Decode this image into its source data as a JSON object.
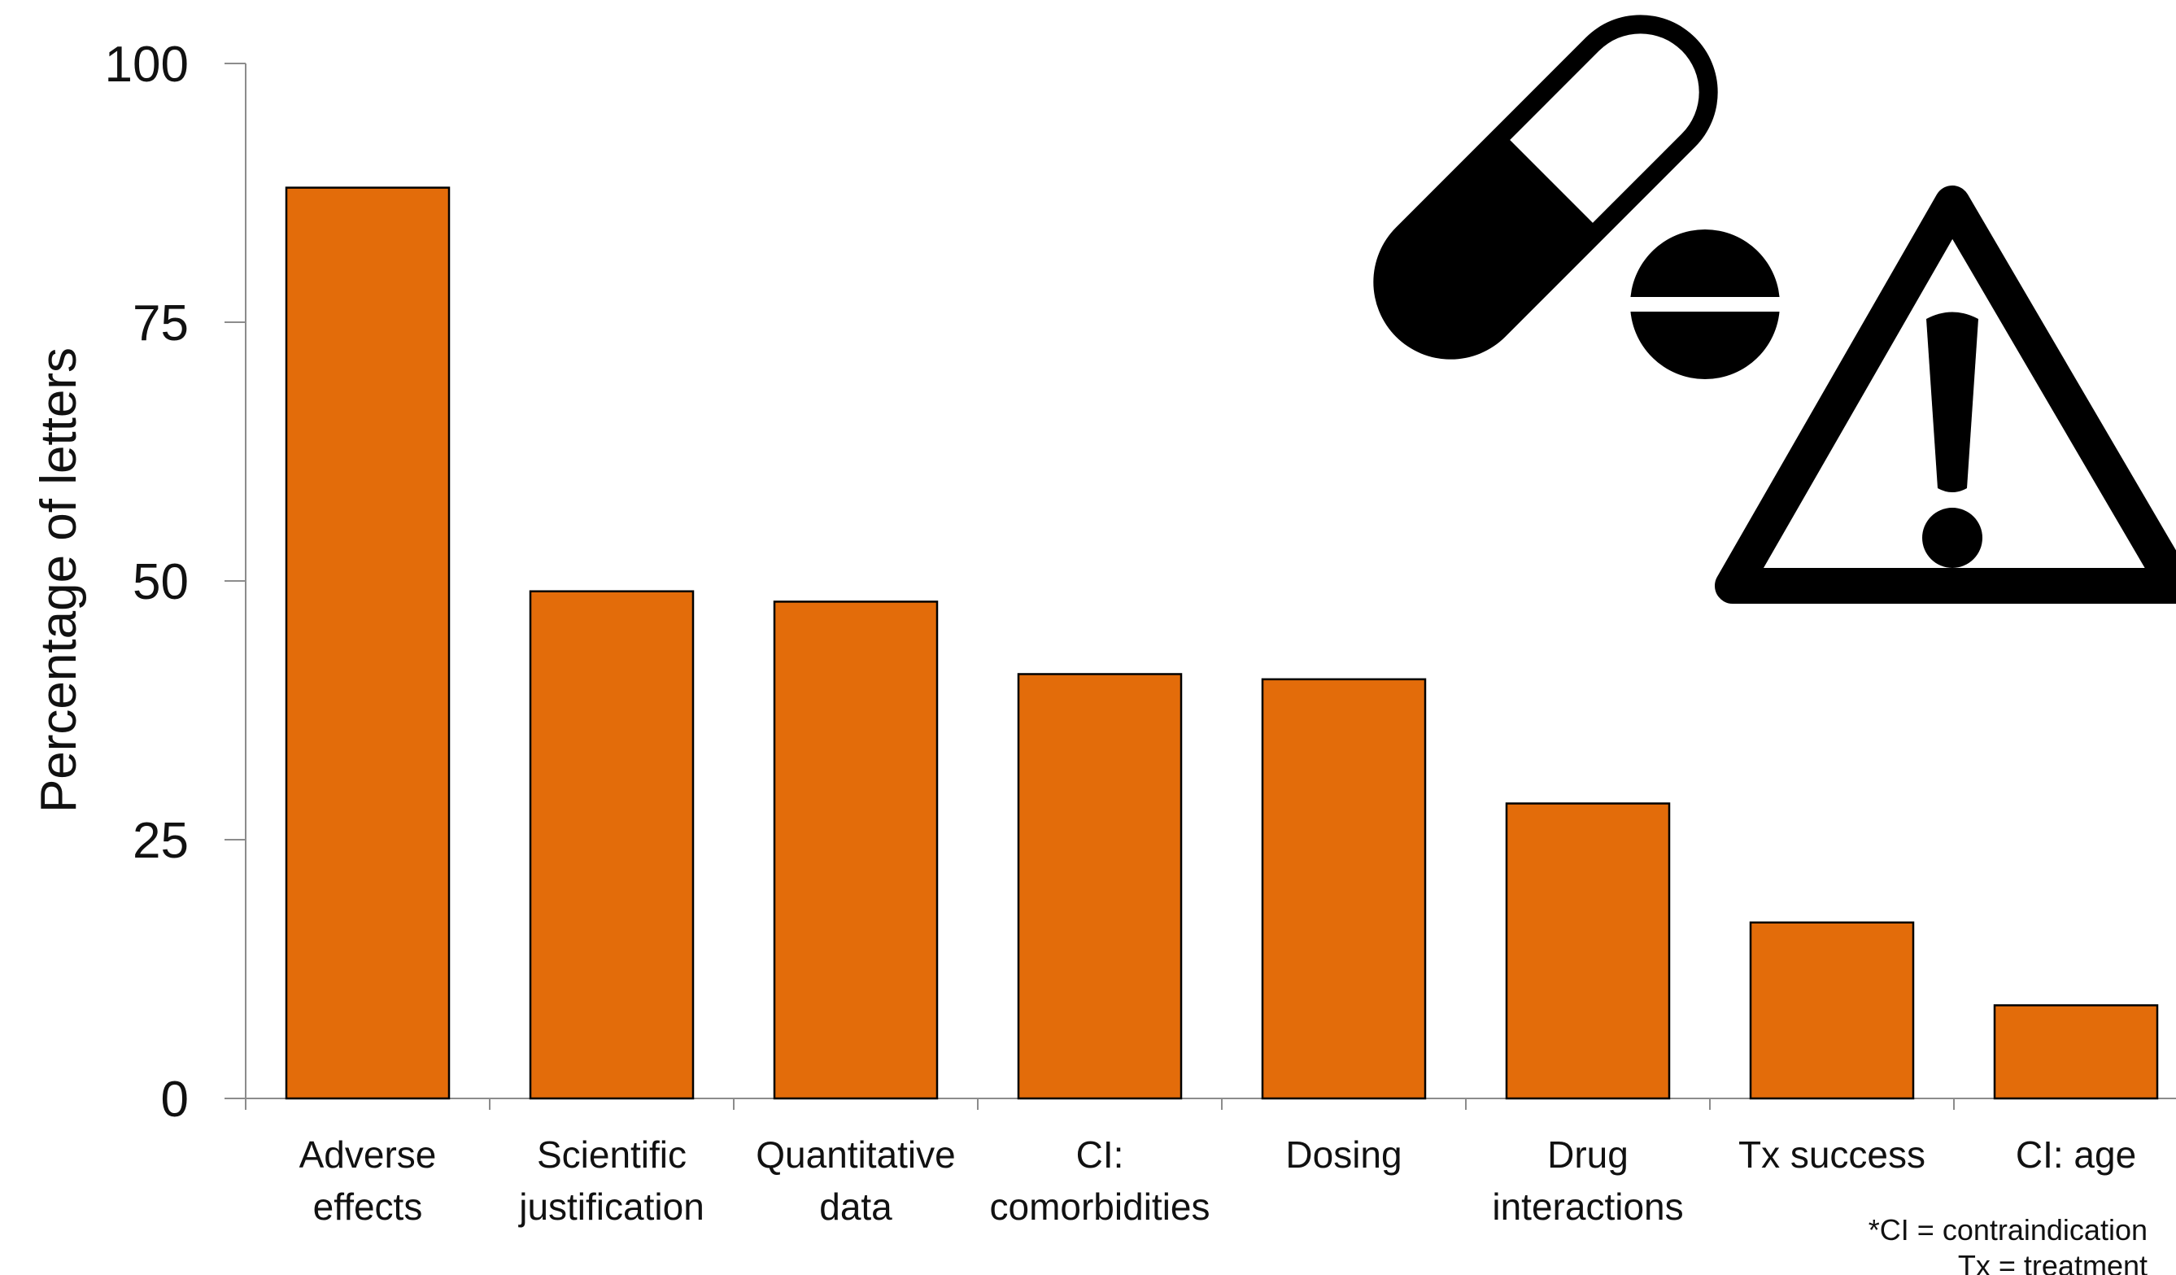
{
  "chart_data": {
    "type": "bar",
    "ylabel": "Percentage of letters",
    "xlabel": "",
    "ylim": [
      0,
      100
    ],
    "yticks": [
      "0",
      "25",
      "50",
      "75",
      "100"
    ],
    "categories": [
      [
        "Adverse",
        "effects"
      ],
      [
        "Scientific",
        "justification"
      ],
      [
        "Quantitative",
        "data"
      ],
      [
        "CI:",
        "comorbidities"
      ],
      [
        "Dosing"
      ],
      [
        "Drug",
        "interactions"
      ],
      [
        "Tx success"
      ],
      [
        "CI: age"
      ]
    ],
    "values": [
      88,
      49,
      48,
      41,
      40.5,
      28.5,
      17,
      9
    ],
    "bar_color": "#E36C0A",
    "grid": false,
    "legend": "none",
    "footnotes": [
      "*CI = contraindication",
      "Tx = treatment"
    ]
  },
  "icons": [
    "pill-capsule-icon",
    "pill-tablet-icon",
    "warning-triangle-icon"
  ]
}
